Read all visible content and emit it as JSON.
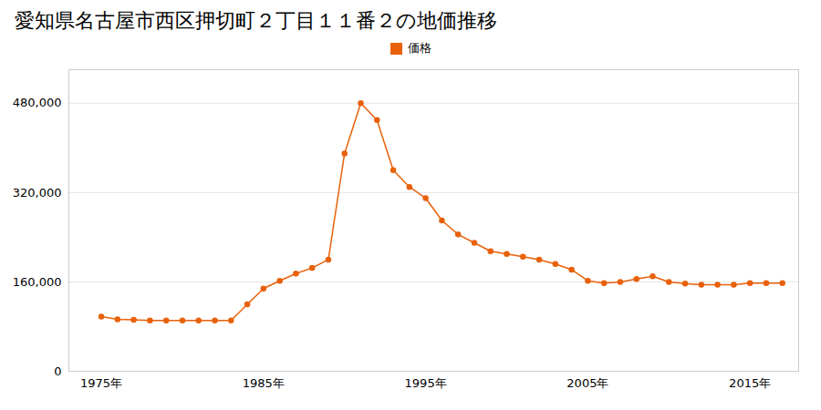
{
  "chart_data": {
    "type": "line",
    "title": "愛知県名古屋市西区押切町２丁目１１番２の地価推移",
    "x": [
      1975,
      1976,
      1977,
      1978,
      1979,
      1980,
      1981,
      1982,
      1983,
      1984,
      1985,
      1986,
      1987,
      1988,
      1989,
      1990,
      1991,
      1992,
      1993,
      1994,
      1995,
      1996,
      1997,
      1998,
      1999,
      2000,
      2001,
      2002,
      2003,
      2004,
      2005,
      2006,
      2007,
      2008,
      2009,
      2010,
      2011,
      2012,
      2013,
      2014,
      2015,
      2016,
      2017
    ],
    "series": [
      {
        "name": "価格",
        "color": "#e8610a",
        "marker": "circle",
        "values": [
          98000,
          93000,
          92000,
          91000,
          91000,
          91000,
          91000,
          91000,
          91000,
          120000,
          148000,
          162000,
          175000,
          185000,
          200000,
          390000,
          480000,
          450000,
          360000,
          330000,
          310000,
          270000,
          245000,
          230000,
          215000,
          210000,
          205000,
          200000,
          192000,
          182000,
          162000,
          158000,
          160000,
          165000,
          170000,
          160000,
          157000,
          155000,
          155000,
          155000,
          158000,
          158000,
          158000
        ]
      }
    ],
    "xlim": [
      1973,
      2018
    ],
    "xticks": [
      {
        "value": 1975,
        "label": "1975年"
      },
      {
        "value": 1985,
        "label": "1985年"
      },
      {
        "value": 1995,
        "label": "1995年"
      },
      {
        "value": 2005,
        "label": "2005年"
      },
      {
        "value": 2015,
        "label": "2015年"
      }
    ],
    "ylim": [
      0,
      540000
    ],
    "yticks": [
      0,
      {
        "value": 160000,
        "label": "160,000"
      },
      {
        "value": 320000,
        "label": "320,000"
      },
      {
        "value": 480000,
        "label": "480,000"
      }
    ],
    "grid": true,
    "legend": "top"
  }
}
